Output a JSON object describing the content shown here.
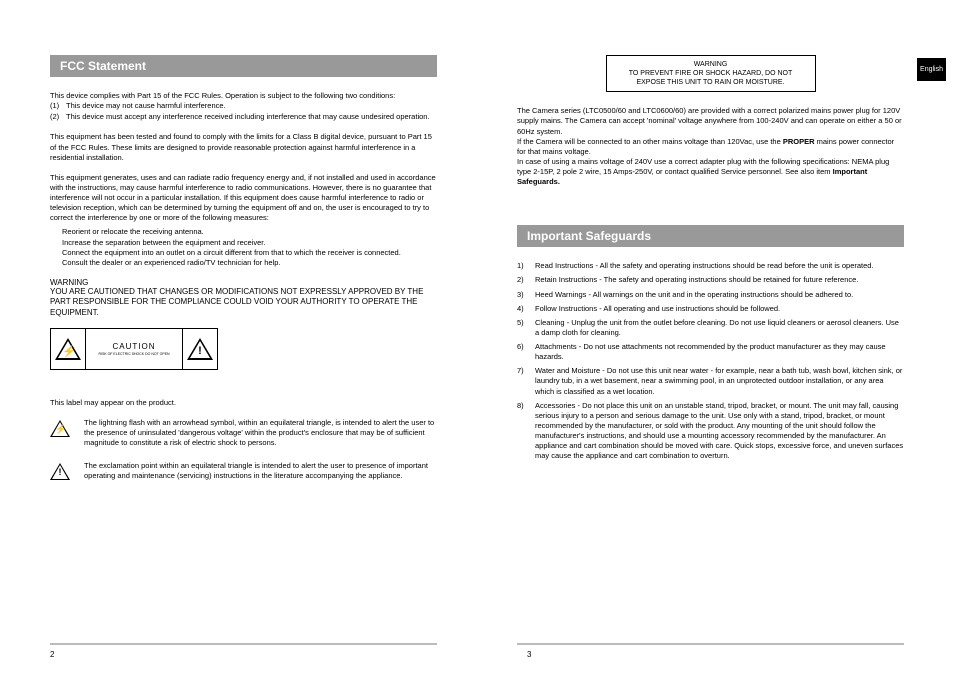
{
  "lang_tab": "English",
  "left": {
    "heading": "FCC Statement",
    "p1": "This device complies with Part 15 of the FCC Rules. Operation is subject to the following two conditions:",
    "cond1_num": "(1)",
    "cond1": "This device may not cause harmful interference.",
    "cond2_num": "(2)",
    "cond2": "This device must accept any interference received including interference that may cause undesired operation.",
    "p2": "This equipment has been tested and found to comply with the limits for a Class B digital device, pursuant to Part 15 of the FCC Rules. These limits are designed to provide reasonable protection against harmful interference in a residential installation.",
    "p3": "This equipment generates, uses and can radiate radio frequency energy and, if not installed and used in accordance with the instructions, may cause harmful interference to radio communications. However, there is no guarantee that interference will not occur in a particular installation. If this equipment does cause harmful interference to radio or television reception, which can be determined by turning the equipment off and on, the user is encouraged to try to correct the interference by one or more of the following measures:",
    "m1": "Reorient or relocate the receiving antenna.",
    "m2": "Increase the separation between the equipment and receiver.",
    "m3": "Connect the equipment into an outlet on a circuit different from that to which the receiver is connected.",
    "m4": "Consult the dealer or an experienced radio/TV technician for help.",
    "warn_h": "WARNING",
    "warn_t": "YOU ARE CAUTIONED THAT CHANGES OR MODIFICATIONS NOT EXPRESSLY APPROVED BY THE PART RESPONSIBLE FOR THE COMPLIANCE COULD VOID YOUR AUTHORITY TO OPERATE THE EQUIPMENT.",
    "caution_label": "CAUTION",
    "caution_sub": "RISK OF ELECTRIC SHOCK DO NOT OPEN",
    "label_note": "This label may appear on the product.",
    "lightning_txt": "The lightning flash with an arrowhead symbol, within an equilateral triangle, is intended to alert the user to the presence of uninsulated 'dangerous voltage' within the product's enclosure that may be of sufficient magnitude to constitute a risk of electric shock to persons.",
    "excl_txt": "The exclamation point within an equilateral triangle is intended to alert the user to presence of important operating and maintenance (servicing) instructions in the literature accompanying the appliance.",
    "pagenum": "2"
  },
  "right": {
    "wbox_l1": "WARNING",
    "wbox_l2": "TO PREVENT FIRE OR SHOCK HAZARD, DO NOT EXPOSE THIS UNIT TO RAIN OR MOISTURE.",
    "p1a": "The Camera series (LTC0500/60 and LTC0600/60) are provided with a correct polarized mains power plug for 120V supply mains. The Camera can accept 'nominal' voltage anywhere from 100-240V and can operate on either a 50 or 60Hz system.",
    "p1b_pre": "If the Camera will be connected to an other mains voltage than 120Vac, use the ",
    "p1b_bold": "PROPER",
    "p1b_post": " mains power connector for that mains voltage.",
    "p1c_pre": "In case of using a mains voltage of 240V use a correct adapter plug with the following specifications: NEMA plug type 2-15P, 2 pole 2 wire, 15 Amps-250V, or contact qualified Service personnel. See also item ",
    "p1c_bold": "Important Safeguards.",
    "heading": "Important Safeguards",
    "s": [
      {
        "n": "1)",
        "t": "Read Instructions - All the safety and operating instructions should be read before the unit is operated."
      },
      {
        "n": "2)",
        "t": "Retain Instructions - The safety and operating instructions should be retained for future reference."
      },
      {
        "n": "3)",
        "t": "Heed Warnings - All warnings on the unit and in the operating instructions should be adhered to."
      },
      {
        "n": "4)",
        "t": "Follow Instructions - All operating and use instructions should be followed."
      },
      {
        "n": "5)",
        "t": "Cleaning - Unplug the unit from the outlet before cleaning. Do not use liquid cleaners or aerosol cleaners. Use a damp cloth for cleaning."
      },
      {
        "n": "6)",
        "t": "Attachments - Do not use attachments not recommended by the product manufacturer as they may cause hazards."
      },
      {
        "n": "7)",
        "t": "Water and Moisture - Do not use this unit near water - for example, near a bath tub, wash bowl, kitchen sink, or laundry tub, in a wet basement, near a swimming pool, in an unprotected outdoor installation, or any area which is classified as a wet location."
      },
      {
        "n": "8)",
        "t": "Accessories - Do not place this unit on an unstable stand, tripod, bracket, or mount. The unit may fall, causing serious injury to a person and serious damage to the unit. Use only with a stand, tripod, bracket, or mount recommended by the manufacturer, or sold with the product. Any mounting of the unit should follow the manufacturer's instructions, and should use a mounting accessory recommended by the manufacturer. An appliance and cart combination should be moved with care. Quick stops, excessive force, and uneven surfaces may cause the appliance and cart combination to overturn."
      }
    ],
    "pagenum": "3"
  }
}
